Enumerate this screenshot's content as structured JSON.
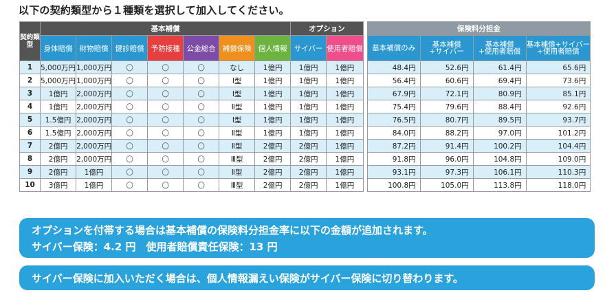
{
  "title": "以下の契約類型から１種類を選択して加入してください。",
  "headers": {
    "type_label": "契約類型",
    "group_basic": "基本補償",
    "group_option": "オプション",
    "group_premium": "保険料分担金",
    "columns": [
      "身体賠償",
      "財物賠償",
      "健診賠償",
      "予防接種",
      "公金総合",
      "補償保険",
      "個人情報",
      "サイバー",
      "使用者賠償"
    ],
    "premium_columns": [
      {
        "l1": "基本補償のみ",
        "l2": ""
      },
      {
        "l1": "基本補償",
        "l2": "+サイバー"
      },
      {
        "l1": "基本補償",
        "l2": "+使用者賠償"
      },
      {
        "l1": "基本補償+サイバー",
        "l2": "+使用者賠償"
      }
    ]
  },
  "rows": [
    [
      "1",
      "5,000万円",
      "1,000万円",
      "〇",
      "〇",
      "〇",
      "なし",
      "1億円",
      "1億円",
      "1億円",
      "48.4円",
      "52.6円",
      "61.4円",
      "65.6円"
    ],
    [
      "2",
      "5,000万円",
      "1,000万円",
      "〇",
      "〇",
      "〇",
      "Ⅰ型",
      "1億円",
      "1億円",
      "1億円",
      "56.4円",
      "60.6円",
      "69.4円",
      "73.6円"
    ],
    [
      "3",
      "1億円",
      "2,000万円",
      "〇",
      "〇",
      "〇",
      "Ⅰ型",
      "1億円",
      "1億円",
      "1億円",
      "67.9円",
      "72.1円",
      "80.9円",
      "85.1円"
    ],
    [
      "4",
      "1億円",
      "2,000万円",
      "〇",
      "〇",
      "〇",
      "Ⅱ型",
      "1億円",
      "1億円",
      "1億円",
      "75.4円",
      "79.6円",
      "88.4円",
      "92.6円"
    ],
    [
      "5",
      "1.5億円",
      "2,000万円",
      "〇",
      "〇",
      "〇",
      "Ⅰ型",
      "1億円",
      "1億円",
      "1億円",
      "76.5円",
      "80.7円",
      "89.5円",
      "93.7円"
    ],
    [
      "6",
      "1.5億円",
      "2,000万円",
      "〇",
      "〇",
      "〇",
      "Ⅱ型",
      "1億円",
      "1億円",
      "1億円",
      "84.0円",
      "88.2円",
      "97.0円",
      "101.2円"
    ],
    [
      "7",
      "2億円",
      "2,000万円",
      "〇",
      "〇",
      "〇",
      "Ⅱ型",
      "2億円",
      "2億円",
      "1億円",
      "87.2円",
      "91.4円",
      "100.2円",
      "104.4円"
    ],
    [
      "8",
      "2億円",
      "2,000万円",
      "〇",
      "〇",
      "〇",
      "Ⅲ型",
      "2億円",
      "2億円",
      "1億円",
      "91.8円",
      "96.0円",
      "104.8円",
      "109.0円"
    ],
    [
      "9",
      "2億円",
      "1億円",
      "〇",
      "〇",
      "〇",
      "Ⅱ型",
      "2億円",
      "2億円",
      "1億円",
      "93.1円",
      "97.3円",
      "106.1円",
      "110.3円"
    ],
    [
      "10",
      "3億円",
      "1億円",
      "〇",
      "〇",
      "〇",
      "Ⅲ型",
      "2億円",
      "2億円",
      "1億円",
      "100.8円",
      "105.0円",
      "113.8円",
      "118.0円"
    ]
  ],
  "banner1": {
    "line1": "オプションを付帯する場合は基本補償の保険料分担金率に以下の金額が追加されます。",
    "line2": "サイバー保険：4.2 円　使用者賠償責任保険：13 円"
  },
  "banner2": "サイバー保険に加入いただく場合は、個人情報漏えい保険がサイバー保険に切り替わります。",
  "colors": {
    "header_dark": "#545454",
    "blue": "#2a97d0",
    "red": "#e5403f",
    "purple": "#7d4ca6",
    "orange": "#ee8f1e",
    "green": "#6db33f",
    "pink": "#ee4f8b",
    "row_shade": "#d8eef8",
    "banner": "#2aa3dc"
  }
}
